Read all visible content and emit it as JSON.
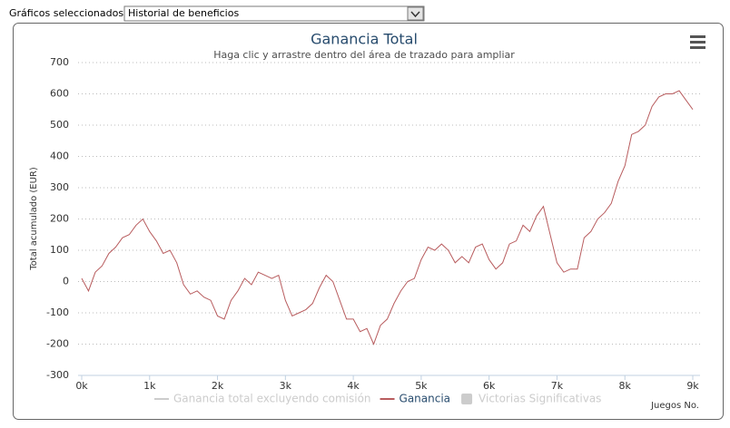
{
  "header": {
    "label": "Gráficos seleccionados:",
    "selected": "Historial de beneficios"
  },
  "chart_data": {
    "type": "line",
    "title": "Ganancia Total",
    "subtitle": "Haga clic y arrastre dentro del área de trazado para ampliar",
    "y_label": "Total acumulado (EUR)",
    "x_label": "Juegos No.",
    "x": [
      0,
      100,
      200,
      300,
      400,
      500,
      600,
      700,
      800,
      900,
      1000,
      1100,
      1200,
      1300,
      1400,
      1500,
      1600,
      1700,
      1800,
      1900,
      2000,
      2100,
      2200,
      2300,
      2400,
      2500,
      2600,
      2700,
      2800,
      2900,
      3000,
      3100,
      3200,
      3300,
      3400,
      3500,
      3600,
      3700,
      3800,
      3900,
      4000,
      4100,
      4200,
      4300,
      4400,
      4500,
      4600,
      4700,
      4800,
      4900,
      5000,
      5100,
      5200,
      5300,
      5400,
      5500,
      5600,
      5700,
      5800,
      5900,
      6000,
      6100,
      6200,
      6300,
      6400,
      6500,
      6600,
      6700,
      6800,
      6900,
      7000,
      7100,
      7200,
      7300,
      7400,
      7500,
      7600,
      7700,
      7800,
      7900,
      8000,
      8100,
      8200,
      8300,
      8400,
      8500,
      8600,
      8700,
      8800,
      8900,
      9000
    ],
    "series": [
      {
        "color": "#b85c5e",
        "values": [
          10,
          -30,
          30,
          50,
          90,
          110,
          140,
          150,
          180,
          200,
          160,
          130,
          90,
          100,
          60,
          -10,
          -40,
          -30,
          -50,
          -60,
          -110,
          -120,
          -60,
          -30,
          10,
          -10,
          30,
          20,
          10,
          20,
          -60,
          -110,
          -100,
          -90,
          -70,
          -20,
          20,
          0,
          -60,
          -120,
          -120,
          -160,
          -150,
          -200,
          -140,
          -120,
          -70,
          -30,
          0,
          10,
          70,
          110,
          100,
          120,
          100,
          60,
          80,
          60,
          110,
          120,
          70,
          40,
          60,
          120,
          130,
          180,
          160,
          210,
          240,
          150,
          60,
          30,
          40,
          40,
          140,
          160,
          200,
          220,
          250,
          320,
          370,
          470,
          480,
          500,
          560,
          590,
          600,
          600,
          610,
          580,
          550
        ]
      }
    ],
    "legend_items": [
      {
        "name": "Ganancia total excluyendo comisión",
        "symbol": "line",
        "active": false
      },
      {
        "name": "Ganancia",
        "symbol": "line",
        "active": true
      },
      {
        "name": "Victorias Significativas",
        "symbol": "box",
        "active": false
      }
    ],
    "xlim": [
      0,
      9000
    ],
    "ylim": [
      -300,
      700
    ],
    "xticks": [
      {
        "value": 0,
        "label": "0k"
      },
      {
        "value": 1000,
        "label": "1k"
      },
      {
        "value": 2000,
        "label": "2k"
      },
      {
        "value": 3000,
        "label": "3k"
      },
      {
        "value": 4000,
        "label": "4k"
      },
      {
        "value": 5000,
        "label": "5k"
      },
      {
        "value": 6000,
        "label": "6k"
      },
      {
        "value": 7000,
        "label": "7k"
      },
      {
        "value": 8000,
        "label": "8k"
      },
      {
        "value": 9000,
        "label": "9k"
      }
    ],
    "yticks": [
      -300,
      -200,
      -100,
      0,
      100,
      200,
      300,
      400,
      500,
      600,
      700
    ],
    "grid": true
  }
}
